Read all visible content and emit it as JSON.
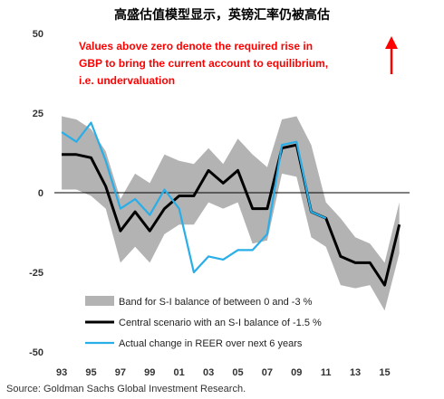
{
  "page_title": "高盛估值模型显示，英镑汇率仍被高估",
  "source": "Source: Goldman Sachs Global Investment Research.",
  "chart_data": {
    "type": "line",
    "annotation": "Values above zero denote the required rise in GBP to bring the current account to equilibrium, i.e. undervaluation",
    "annotation_lines": [
      "Values above zero denote the required rise in",
      "GBP to bring the current account to equilibrium,",
      "i.e. undervaluation"
    ],
    "annotation_color": "#ff0000",
    "x_tick_labels": [
      "93",
      "95",
      "97",
      "99",
      "01",
      "03",
      "05",
      "07",
      "09",
      "11",
      "13",
      "15"
    ],
    "x_tick_values": [
      1993,
      1995,
      1997,
      1999,
      2001,
      2003,
      2005,
      2007,
      2009,
      2011,
      2013,
      2015
    ],
    "y_tick_labels": [
      "50",
      "25",
      "0",
      "-25",
      "-50"
    ],
    "y_tick_values": [
      50,
      25,
      0,
      -25,
      -50
    ],
    "xlim": [
      1992.5,
      2016.7
    ],
    "ylim": [
      -50,
      50
    ],
    "legend_position": "bottom-left",
    "band": {
      "name": "Band for S-I balance of between 0 and -3 %",
      "color": "#b3b3b3",
      "x": [
        1993,
        1994,
        1995,
        1996,
        1997,
        1998,
        1999,
        2000,
        2001,
        2002,
        2003,
        2004,
        2005,
        2006,
        2007,
        2008,
        2009,
        2010,
        2011,
        2012,
        2013,
        2014,
        2015,
        2016
      ],
      "upper": [
        24,
        23,
        20,
        13,
        -2,
        6,
        3,
        12,
        10,
        9,
        14,
        9,
        17,
        12,
        8,
        23,
        24,
        15,
        -3,
        -8,
        -14,
        -16,
        -22,
        -3
      ],
      "lower": [
        1,
        1,
        -1,
        -5,
        -22,
        -17,
        -22,
        -13,
        -10,
        -10,
        -3,
        -5,
        -3,
        -16,
        -15,
        6,
        5,
        -14,
        -17,
        -29,
        -30,
        -29,
        -37,
        -19
      ]
    },
    "series": [
      {
        "name": "Central scenario with an S-I balance of -1.5 %",
        "color": "#000000",
        "x": [
          1993,
          1994,
          1995,
          1996,
          1997,
          1998,
          1999,
          2000,
          2001,
          2002,
          2003,
          2004,
          2005,
          2006,
          2007,
          2008,
          2009,
          2010,
          2011,
          2012,
          2013,
          2014,
          2015,
          2016
        ],
        "values": [
          12,
          12,
          11,
          2,
          -12,
          -6,
          -12,
          -5,
          -1,
          -1,
          7,
          3,
          7,
          -5,
          -5,
          14,
          15,
          -6,
          -8,
          -20,
          -22,
          -22,
          -29,
          -10
        ]
      },
      {
        "name": "Actual change in REER over next 6 years",
        "color": "#29aee8",
        "x": [
          1993,
          1994,
          1995,
          1996,
          1997,
          1998,
          1999,
          2000,
          2001,
          2002,
          2003,
          2004,
          2005,
          2006,
          2007,
          2008,
          2009,
          2010,
          2011
        ],
        "values": [
          19,
          16,
          22,
          10,
          -5,
          -2,
          -7,
          1,
          -5,
          -25,
          -20,
          -21,
          -18,
          -18,
          -13,
          15,
          16,
          -6,
          -8
        ]
      }
    ]
  }
}
